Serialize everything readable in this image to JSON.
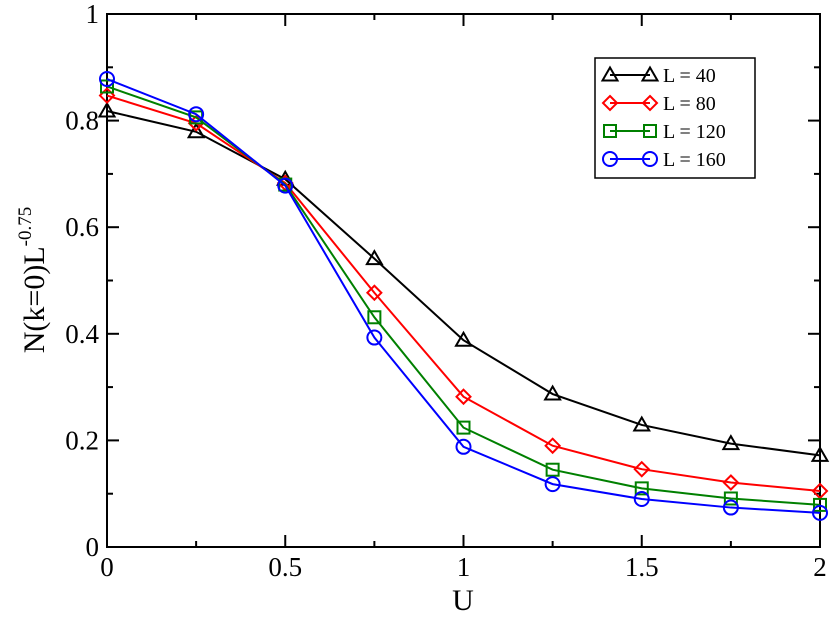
{
  "chart_data": {
    "type": "line",
    "title": "",
    "xlabel": "U",
    "ylabel": {
      "base": "N(k=0)L",
      "superscript": "-0.75"
    },
    "xlim": [
      0,
      2
    ],
    "ylim": [
      0,
      1
    ],
    "xticks": [
      0,
      0.5,
      1,
      1.5,
      2
    ],
    "xtick_labels": [
      "0",
      "0.5",
      "1",
      "1.5",
      "2"
    ],
    "yticks": [
      0,
      0.2,
      0.4,
      0.6,
      0.8,
      1
    ],
    "ytick_labels": [
      "0",
      "0.2",
      "0.4",
      "0.6",
      "0.8",
      "1"
    ],
    "grid": false,
    "legend_position": "top-right",
    "x": [
      0,
      0.25,
      0.5,
      0.75,
      1,
      1.25,
      1.5,
      1.75,
      2
    ],
    "series": [
      {
        "name": "L = 40",
        "marker": "triangle",
        "color": "#000000",
        "values": [
          0.818,
          0.779,
          0.69,
          0.541,
          0.388,
          0.287,
          0.229,
          0.194,
          0.172
        ]
      },
      {
        "name": "L = 80",
        "marker": "diamond",
        "color": "#ff0000",
        "values": [
          0.847,
          0.795,
          0.683,
          0.477,
          0.282,
          0.19,
          0.146,
          0.121,
          0.105
        ]
      },
      {
        "name": "L = 120",
        "marker": "square",
        "color": "#008000",
        "values": [
          0.864,
          0.806,
          0.68,
          0.431,
          0.224,
          0.145,
          0.11,
          0.091,
          0.079
        ]
      },
      {
        "name": "L = 160",
        "marker": "circle",
        "color": "#0000ff",
        "values": [
          0.878,
          0.812,
          0.678,
          0.393,
          0.188,
          0.118,
          0.09,
          0.074,
          0.064
        ]
      }
    ]
  }
}
